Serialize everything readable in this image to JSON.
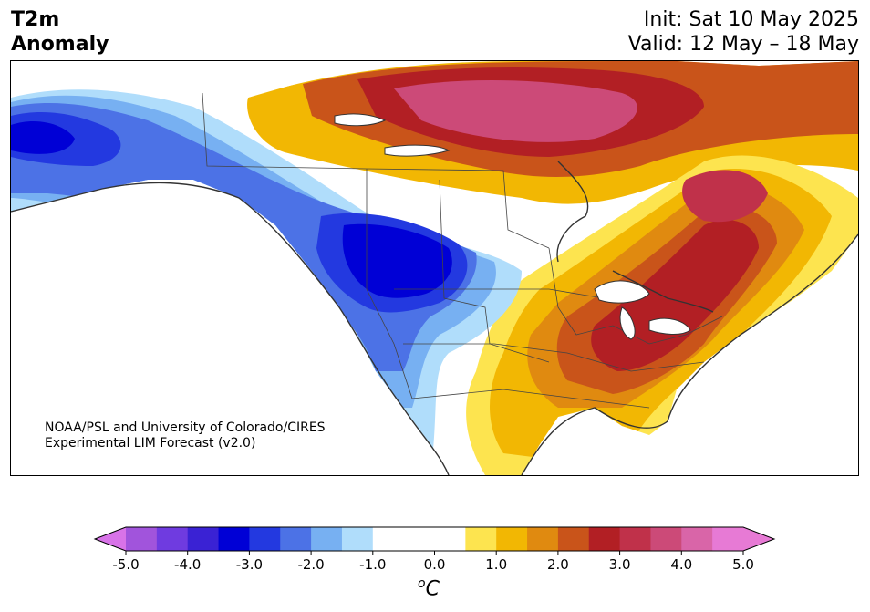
{
  "header": {
    "title_line1": "T2m",
    "title_line2": "Anomaly",
    "init": "Init: Sat 10 May 2025",
    "valid": "Valid: 12 May – 18 May"
  },
  "map": {
    "region": "North America",
    "credit_line1": "NOAA/PSL and University of Colorado/CIRES",
    "credit_line2": "Experimental LIM Forecast (v2.0)"
  },
  "colorbar": {
    "unit_symbol": "o",
    "unit_letter": "C",
    "tick_labels": [
      "-5.0",
      "-4.0",
      "-3.0",
      "-2.0",
      "-1.0",
      "0.0",
      "1.0",
      "2.0",
      "3.0",
      "4.0",
      "5.0"
    ],
    "levels": [
      -5.0,
      -4.5,
      -4.0,
      -3.5,
      -3.0,
      -2.5,
      -2.0,
      -1.5,
      -1.0,
      -0.5,
      0.5,
      1.0,
      1.5,
      2.0,
      2.5,
      3.0,
      3.5,
      4.0,
      4.5,
      5.0
    ],
    "colors": [
      "#a154dc",
      "#6f3be0",
      "#3a22d4",
      "#0000d6",
      "#2339e0",
      "#4c72e6",
      "#77b0f2",
      "#b0ddfb",
      "#ffffff",
      "#ffffff",
      "#fde44f",
      "#f2b703",
      "#e08a10",
      "#c9541a",
      "#b21f24",
      "#c0314a",
      "#cc4a78",
      "#d965a8",
      "#e77ad5"
    ],
    "under_color": "#d873e8",
    "over_color": "#e77ad5"
  }
}
